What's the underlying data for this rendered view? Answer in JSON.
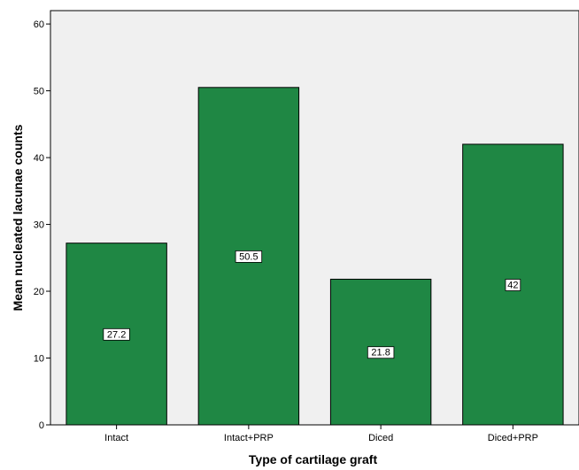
{
  "chart_data": {
    "type": "bar",
    "title": "",
    "xlabel": "Type of cartilage graft",
    "ylabel": "Mean nucleated lacunae counts",
    "categories": [
      "Intact",
      "Intact+PRP",
      "Diced",
      "Diced+PRP"
    ],
    "values": [
      27.2,
      50.5,
      21.8,
      42
    ],
    "data_labels": [
      "27.2",
      "50.5",
      "21.8",
      "42"
    ],
    "ylim": [
      0,
      62
    ],
    "yticks": [
      0,
      10,
      20,
      30,
      40,
      50,
      60
    ],
    "grid": false,
    "legend": "none",
    "colors": {
      "bar_fill": "#1f8744",
      "bar_stroke": "#000000",
      "plot_background": "#f0f0f0",
      "page_background": "#ffffff"
    }
  }
}
